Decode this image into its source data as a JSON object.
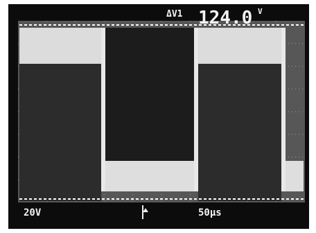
{
  "readout": {
    "label": "ΔV1",
    "value": "124.0",
    "unit": "V"
  },
  "footer": {
    "volts_per_div": "20V",
    "time_per_div": "50μs"
  }
}
